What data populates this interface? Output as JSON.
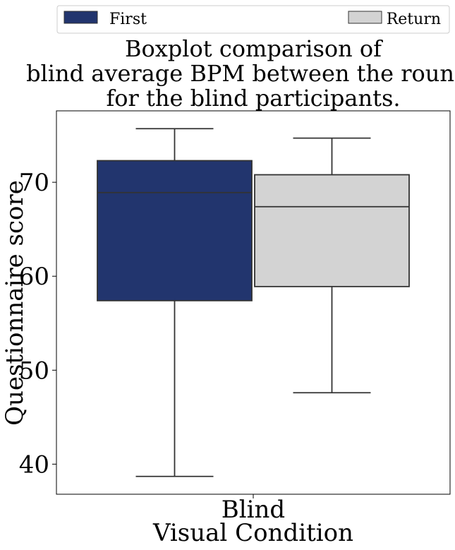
{
  "chart_data": {
    "type": "boxplot",
    "title_lines": [
      "Boxplot comparison of",
      "blind average BPM between the rounds",
      "for the blind participants."
    ],
    "xlabel": "Visual Condition",
    "ylabel": "Questionnaire score",
    "categories": [
      "Blind"
    ],
    "ylim": [
      36.8,
      77.6
    ],
    "yticks": [
      40,
      50,
      60,
      70
    ],
    "legend_position": "top",
    "series": [
      {
        "name": "First",
        "color": "#22356e",
        "stats": {
          "whisker_low": 38.7,
          "q1": 57.4,
          "median": 68.9,
          "q3": 72.3,
          "whisker_high": 75.7
        }
      },
      {
        "name": "Return",
        "color": "#d3d3d3",
        "stats": {
          "whisker_low": 47.6,
          "q1": 58.9,
          "median": 67.4,
          "q3": 70.8,
          "whisker_high": 74.7
        }
      }
    ]
  }
}
